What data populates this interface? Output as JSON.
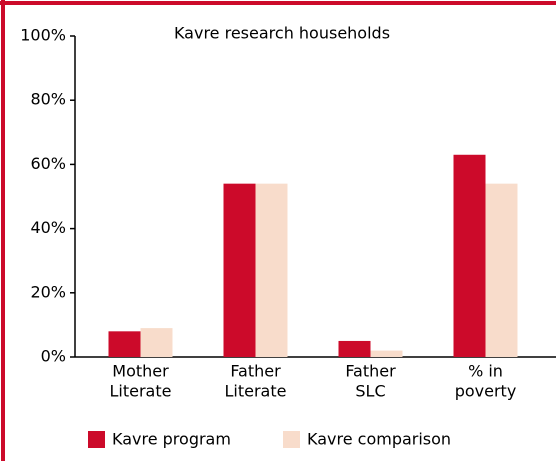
{
  "chart_data": {
    "type": "bar",
    "title": "Kavre research households",
    "categories": [
      [
        "Mother",
        "Literate"
      ],
      [
        "Father",
        "Literate"
      ],
      [
        "Father",
        "SLC"
      ],
      [
        "% in",
        "poverty"
      ]
    ],
    "series": [
      {
        "name": "Kavre program",
        "color": "#cc0a2a",
        "values": [
          8,
          54,
          5,
          63
        ]
      },
      {
        "name": "Kavre comparison",
        "color": "#f8dccb",
        "values": [
          9,
          54,
          2,
          54
        ]
      }
    ],
    "ylim": [
      0,
      100
    ],
    "yticks": [
      {
        "value": 0,
        "label": "0%"
      },
      {
        "value": 20,
        "label": "20%"
      },
      {
        "value": 40,
        "label": "40%"
      },
      {
        "value": 60,
        "label": "60%"
      },
      {
        "value": 80,
        "label": "80%"
      },
      {
        "value": 100,
        "label": "100%"
      }
    ]
  }
}
